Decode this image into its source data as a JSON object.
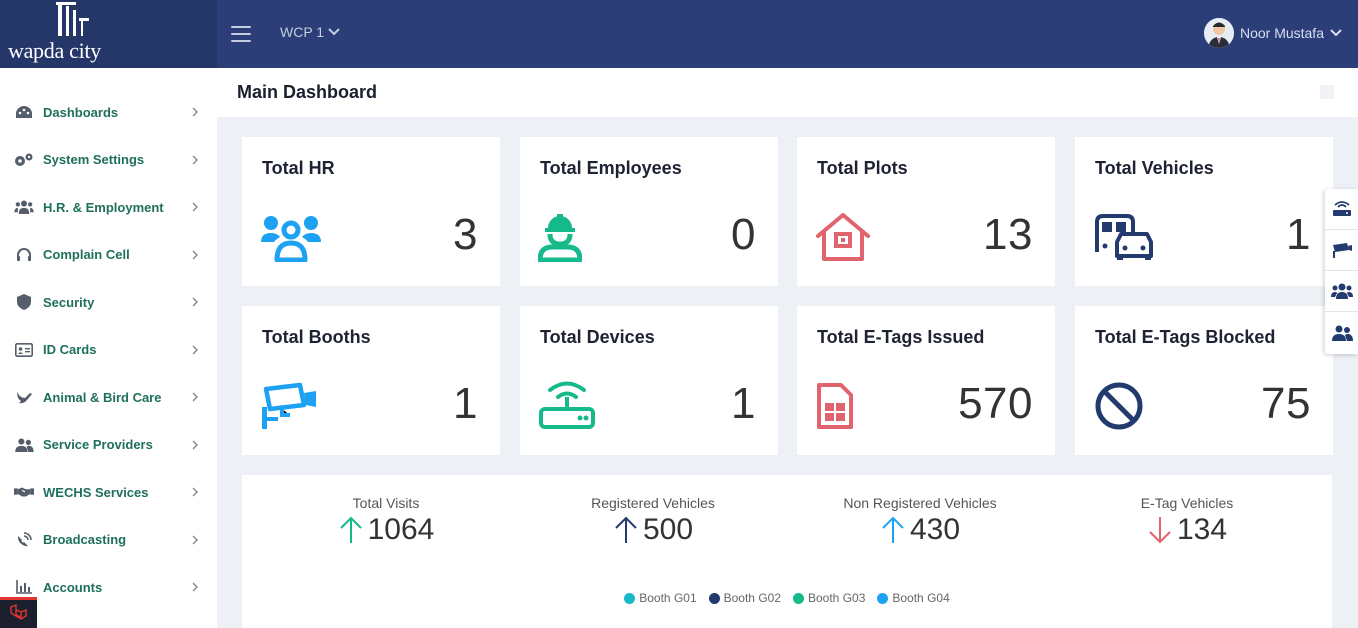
{
  "brand": {
    "logo_text": "wapda city"
  },
  "topbar": {
    "project": "WCP 1",
    "user_name": "Noor Mustafa"
  },
  "sidebar": {
    "items": [
      {
        "label": "Dashboards",
        "icon": "palette-icon"
      },
      {
        "label": "System Settings",
        "icon": "gears-icon"
      },
      {
        "label": "H.R. & Employment",
        "icon": "users-icon"
      },
      {
        "label": "Complain Cell",
        "icon": "headset-icon"
      },
      {
        "label": "Security",
        "icon": "shield-icon"
      },
      {
        "label": "ID Cards",
        "icon": "id-card-icon"
      },
      {
        "label": "Animal & Bird Care",
        "icon": "dove-icon"
      },
      {
        "label": "Service Providers",
        "icon": "user-group-icon"
      },
      {
        "label": "WECHS Services",
        "icon": "handshake-icon"
      },
      {
        "label": "Broadcasting",
        "icon": "satellite-dish-icon"
      },
      {
        "label": "Accounts",
        "icon": "chart-icon"
      }
    ]
  },
  "page": {
    "title": "Main Dashboard"
  },
  "cards": [
    {
      "title": "Total HR",
      "value": "3",
      "icon": "people-icon",
      "color": "#1da1f2"
    },
    {
      "title": "Total Employees",
      "value": "0",
      "icon": "worker-icon",
      "color": "#16b98a"
    },
    {
      "title": "Total Plots",
      "value": "13",
      "icon": "house-icon",
      "color": "#e0636e"
    },
    {
      "title": "Total Vehicles",
      "value": "1",
      "icon": "vehicles-icon",
      "color": "#233a6e"
    },
    {
      "title": "Total Booths",
      "value": "1",
      "icon": "cctv-icon",
      "color": "#1da1f2"
    },
    {
      "title": "Total Devices",
      "value": "1",
      "icon": "router-icon",
      "color": "#16b98a"
    },
    {
      "title": "Total E-Tags Issued",
      "value": "570",
      "icon": "sim-card-icon",
      "color": "#e0636e"
    },
    {
      "title": "Total E-Tags Blocked",
      "value": "75",
      "icon": "ban-icon",
      "color": "#233a6e"
    }
  ],
  "visits": [
    {
      "label": "Total Visits",
      "value": "1064",
      "direction": "up",
      "color": "#16b98a"
    },
    {
      "label": "Registered Vehicles",
      "value": "500",
      "direction": "up",
      "color": "#233a6e"
    },
    {
      "label": "Non Registered Vehicles",
      "value": "430",
      "direction": "up",
      "color": "#1da1f2"
    },
    {
      "label": "E-Tag Vehicles",
      "value": "134",
      "direction": "down",
      "color": "#e0636e"
    }
  ],
  "legend": [
    {
      "label": "Booth G01",
      "color": "#17b9c9"
    },
    {
      "label": "Booth G02",
      "color": "#233a6e"
    },
    {
      "label": "Booth G03",
      "color": "#16b98a"
    },
    {
      "label": "Booth G04",
      "color": "#1da1f2"
    }
  ],
  "float_panel": [
    "router-icon",
    "cctv-icon",
    "users-icon",
    "user-group-icon"
  ]
}
